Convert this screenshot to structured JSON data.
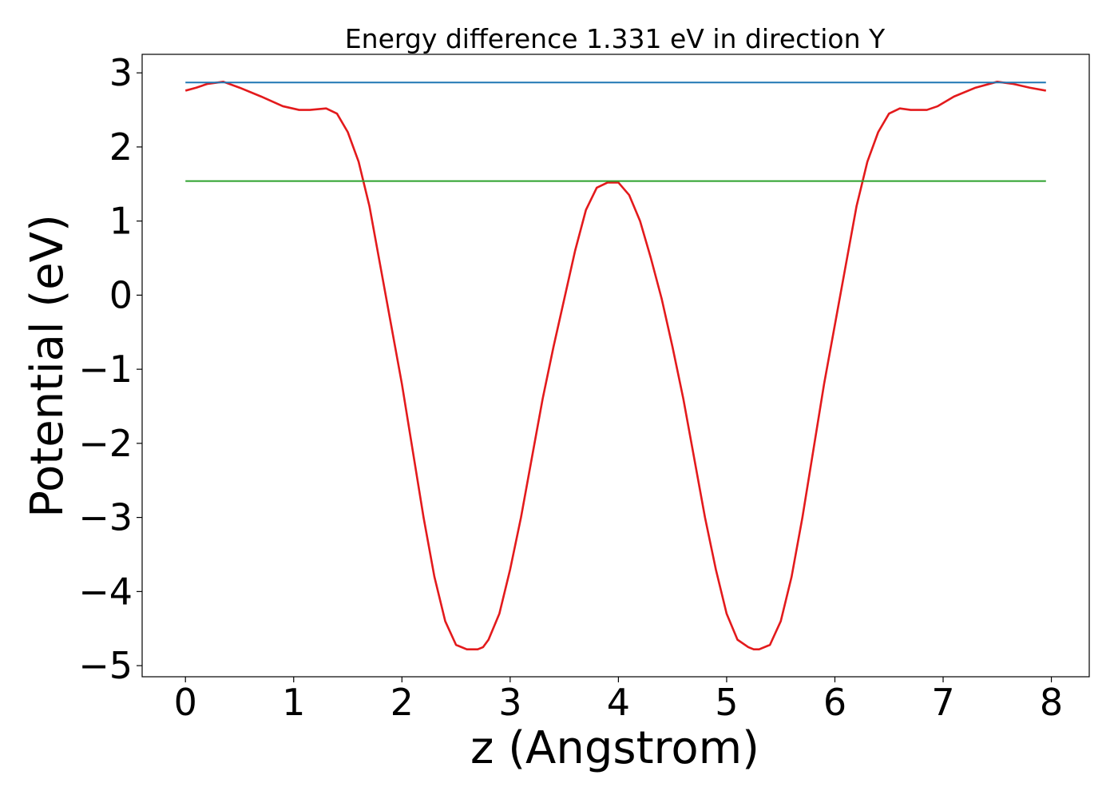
{
  "chart_data": {
    "type": "line",
    "title": "Energy difference 1.331 eV in direction Y",
    "xlabel": "z (Angstrom)",
    "ylabel": "Potential (eV)",
    "xlim": [
      -0.4,
      8.35
    ],
    "ylim": [
      -5.15,
      3.25
    ],
    "xticks": [
      0,
      1,
      2,
      3,
      4,
      5,
      6,
      7,
      8
    ],
    "yticks": [
      -5,
      -4,
      -3,
      -2,
      -1,
      0,
      1,
      2,
      3
    ],
    "xtick_labels": [
      "0",
      "1",
      "2",
      "3",
      "4",
      "5",
      "6",
      "7",
      "8"
    ],
    "ytick_labels": [
      "−5",
      "−4",
      "−3",
      "−2",
      "−1",
      "0",
      "1",
      "2",
      "3"
    ],
    "grid": false,
    "legend": "none",
    "series": [
      {
        "color": "#e31a1c",
        "x": [
          0.0,
          0.1,
          0.2,
          0.35,
          0.5,
          0.7,
          0.9,
          1.05,
          1.15,
          1.3,
          1.4,
          1.5,
          1.6,
          1.7,
          1.8,
          1.9,
          2.0,
          2.1,
          2.2,
          2.3,
          2.4,
          2.5,
          2.6,
          2.7,
          2.75,
          2.8,
          2.9,
          3.0,
          3.1,
          3.2,
          3.3,
          3.4,
          3.5,
          3.6,
          3.7,
          3.8,
          3.9,
          4.0,
          4.1,
          4.2,
          4.3,
          4.4,
          4.5,
          4.6,
          4.7,
          4.8,
          4.9,
          5.0,
          5.1,
          5.2,
          5.25,
          5.3,
          5.4,
          5.5,
          5.6,
          5.7,
          5.8,
          5.9,
          6.0,
          6.1,
          6.2,
          6.3,
          6.4,
          6.5,
          6.6,
          6.7,
          6.85,
          6.95,
          7.1,
          7.3,
          7.5,
          7.65,
          7.8,
          7.95
        ],
        "y": [
          2.76,
          2.8,
          2.85,
          2.88,
          2.8,
          2.68,
          2.55,
          2.5,
          2.5,
          2.52,
          2.45,
          2.2,
          1.8,
          1.2,
          0.4,
          -0.4,
          -1.2,
          -2.1,
          -3.0,
          -3.8,
          -4.4,
          -4.72,
          -4.78,
          -4.78,
          -4.75,
          -4.65,
          -4.3,
          -3.7,
          -3.0,
          -2.2,
          -1.4,
          -0.7,
          -0.05,
          0.6,
          1.15,
          1.45,
          1.52,
          1.52,
          1.35,
          1.0,
          0.5,
          -0.05,
          -0.7,
          -1.4,
          -2.2,
          -3.0,
          -3.7,
          -4.3,
          -4.65,
          -4.75,
          -4.78,
          -4.78,
          -4.72,
          -4.4,
          -3.8,
          -3.0,
          -2.1,
          -1.2,
          -0.4,
          0.4,
          1.2,
          1.8,
          2.2,
          2.45,
          2.52,
          2.5,
          2.5,
          2.55,
          2.68,
          2.8,
          2.88,
          2.85,
          2.8,
          2.76
        ]
      },
      {
        "color": "#1f77b4",
        "x": [
          0.0,
          7.95
        ],
        "y": [
          2.87,
          2.87
        ]
      },
      {
        "color": "#2ca02c",
        "x": [
          0.0,
          7.95
        ],
        "y": [
          1.54,
          1.54
        ]
      }
    ]
  }
}
